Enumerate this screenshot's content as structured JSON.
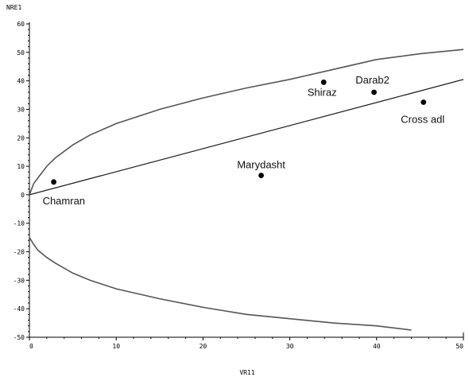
{
  "chart_data": {
    "type": "scatter",
    "title": "",
    "xlabel": "VR11",
    "ylabel": "NRE1",
    "xlim": [
      0,
      50
    ],
    "ylim": [
      -50,
      60
    ],
    "x_ticks": [
      0,
      10,
      20,
      30,
      40,
      50
    ],
    "x_tick_labels": [
      "0",
      "10",
      "20",
      "30",
      "40",
      "50"
    ],
    "y_ticks": [
      -50,
      -40,
      -30,
      -20,
      -10,
      0,
      10,
      20,
      30,
      40,
      50,
      60
    ],
    "y_tick_labels": [
      "-50",
      "-40",
      "-30",
      "-20",
      "-10",
      "0",
      "10",
      "20",
      "30",
      "40",
      "50",
      "60"
    ],
    "grid": false,
    "legend": "none",
    "points": [
      {
        "label": "Chamran",
        "x": 2.8,
        "y": 4.5
      },
      {
        "label": "Marydasht",
        "x": 26.7,
        "y": 6.8
      },
      {
        "label": "Shiraz",
        "x": 33.9,
        "y": 39.5
      },
      {
        "label": "Darab2",
        "x": 39.7,
        "y": 36.0
      },
      {
        "label": "Cross adl",
        "x": 45.4,
        "y": 32.5
      }
    ],
    "regression_line": {
      "x": [
        0,
        50
      ],
      "y": [
        0,
        40.5
      ]
    },
    "upper_limit": {
      "x": [
        0,
        0.5,
        1,
        2,
        3,
        5,
        7,
        10,
        15,
        20,
        25,
        30,
        35,
        40,
        45,
        50
      ],
      "y": [
        0,
        4,
        6,
        10,
        13,
        17.5,
        21,
        25,
        30,
        34,
        37.5,
        40.5,
        44,
        47.5,
        49.5,
        51
      ]
    },
    "lower_limit": {
      "x": [
        0,
        0.5,
        1,
        2,
        3,
        5,
        7,
        10,
        15,
        20,
        25,
        30,
        35,
        40,
        44
      ],
      "y": [
        -15,
        -17.5,
        -19.5,
        -22,
        -24,
        -27.5,
        -30,
        -33,
        -36.5,
        -39.5,
        -42,
        -43.5,
        -45,
        -46,
        -47.5
      ]
    },
    "colors": {
      "points": "#000000",
      "line": "#222222",
      "limits": "#555555",
      "axes": "#000000"
    }
  }
}
